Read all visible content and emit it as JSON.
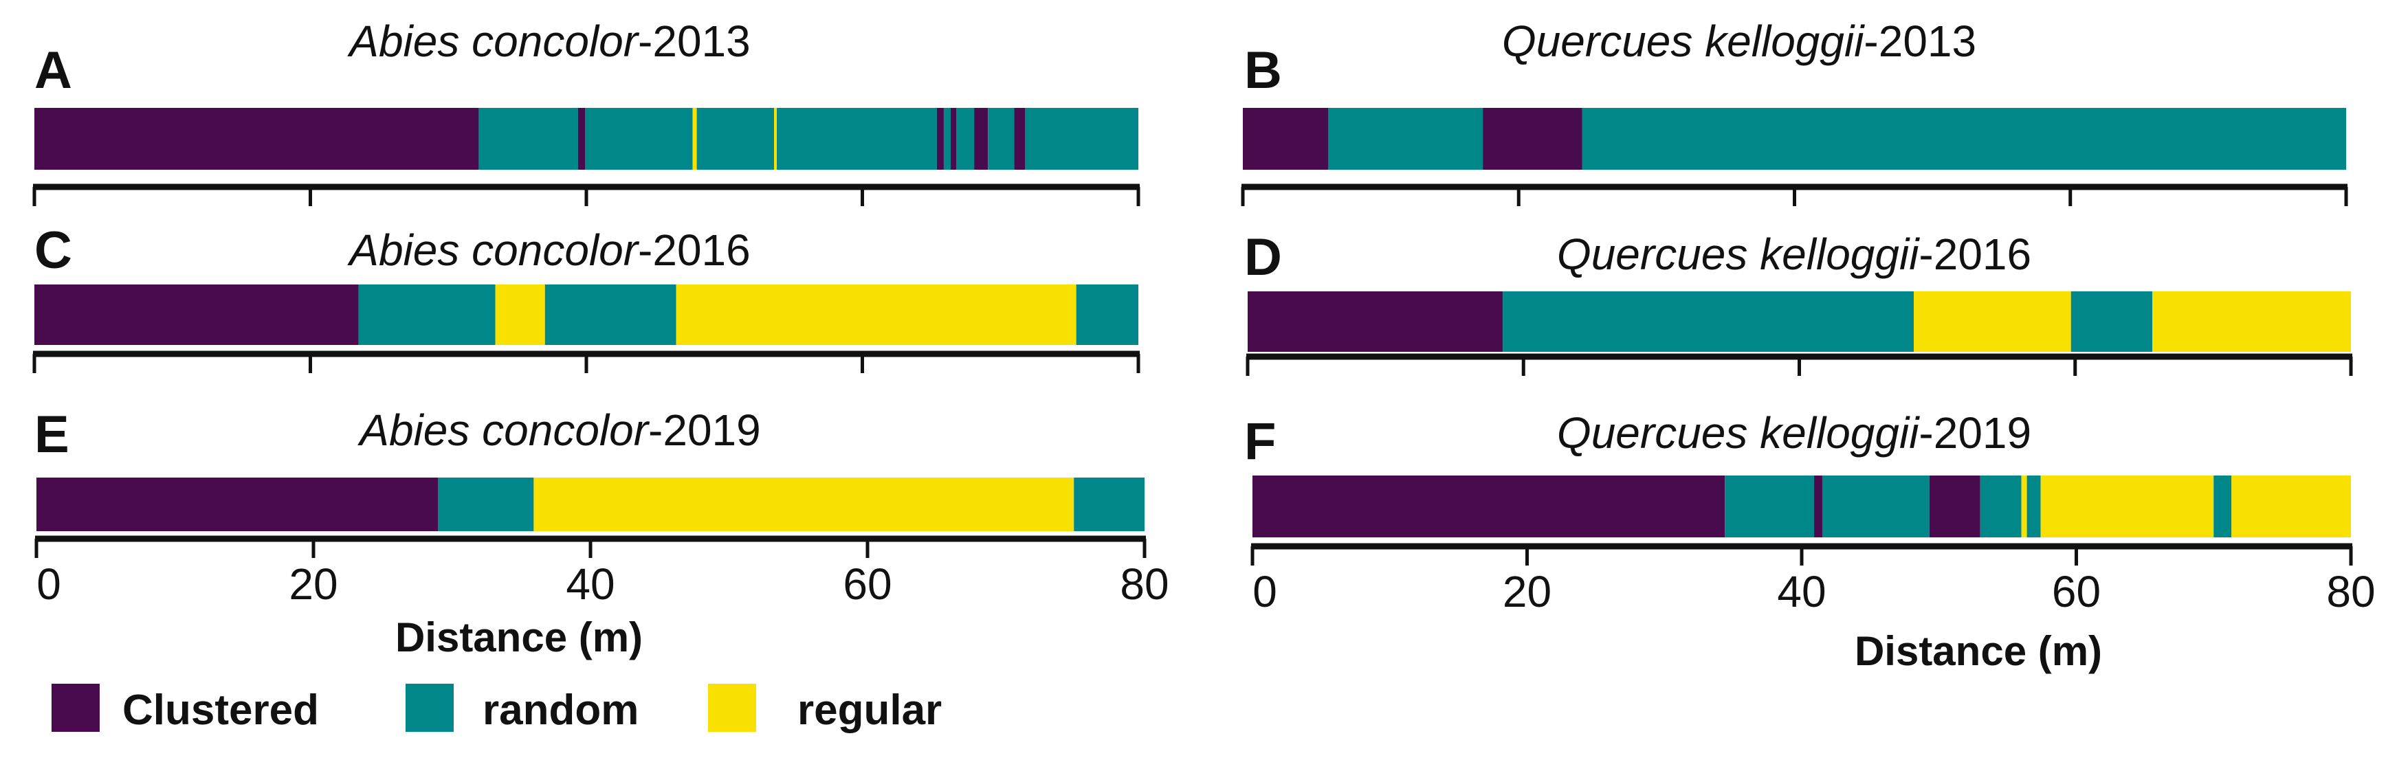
{
  "colors": {
    "clustered": "#4a0a4e",
    "random": "#00878a",
    "regular": "#f8e000",
    "axis": "#111111"
  },
  "legend": [
    {
      "key": "clustered",
      "label": "Clustered"
    },
    {
      "key": "random",
      "label": "random"
    },
    {
      "key": "regular",
      "label": "regular"
    }
  ],
  "chart_data": [
    {
      "type": "bar",
      "panel": "A",
      "species": "Abies concolor",
      "year": "-2013",
      "xlim": [
        0,
        80
      ],
      "xticks": [
        0,
        20,
        40,
        60,
        80
      ],
      "show_tick_labels": false,
      "xlabel": "",
      "segments": [
        {
          "start": 0,
          "end": 32.2,
          "class": "clustered"
        },
        {
          "start": 32.2,
          "end": 39.4,
          "class": "random"
        },
        {
          "start": 39.4,
          "end": 39.9,
          "class": "clustered"
        },
        {
          "start": 39.9,
          "end": 47.7,
          "class": "random"
        },
        {
          "start": 47.7,
          "end": 48.0,
          "class": "regular"
        },
        {
          "start": 48.0,
          "end": 53.6,
          "class": "random"
        },
        {
          "start": 53.6,
          "end": 53.8,
          "class": "regular"
        },
        {
          "start": 53.8,
          "end": 65.4,
          "class": "random"
        },
        {
          "start": 65.4,
          "end": 65.9,
          "class": "clustered"
        },
        {
          "start": 65.9,
          "end": 66.4,
          "class": "random"
        },
        {
          "start": 66.4,
          "end": 66.8,
          "class": "clustered"
        },
        {
          "start": 66.8,
          "end": 68.1,
          "class": "random"
        },
        {
          "start": 68.1,
          "end": 69.1,
          "class": "clustered"
        },
        {
          "start": 69.1,
          "end": 71.0,
          "class": "random"
        },
        {
          "start": 71.0,
          "end": 71.8,
          "class": "clustered"
        },
        {
          "start": 71.8,
          "end": 80,
          "class": "random"
        }
      ]
    },
    {
      "type": "bar",
      "panel": "B",
      "species": "Quercues kelloggii",
      "year": "-2013",
      "xlim": [
        0,
        80
      ],
      "xticks": [
        0,
        20,
        40,
        60,
        80
      ],
      "show_tick_labels": false,
      "xlabel": "",
      "segments": [
        {
          "start": 0,
          "end": 6.2,
          "class": "clustered"
        },
        {
          "start": 6.2,
          "end": 17.4,
          "class": "random"
        },
        {
          "start": 17.4,
          "end": 24.6,
          "class": "clustered"
        },
        {
          "start": 24.6,
          "end": 80,
          "class": "random"
        }
      ]
    },
    {
      "type": "bar",
      "panel": "C",
      "species": "Abies concolor",
      "year": "-2016",
      "xlim": [
        0,
        80
      ],
      "xticks": [
        0,
        20,
        40,
        60,
        80
      ],
      "show_tick_labels": false,
      "xlabel": "",
      "segments": [
        {
          "start": 0,
          "end": 23.5,
          "class": "clustered"
        },
        {
          "start": 23.5,
          "end": 33.4,
          "class": "random"
        },
        {
          "start": 33.4,
          "end": 37.0,
          "class": "regular"
        },
        {
          "start": 37.0,
          "end": 46.5,
          "class": "random"
        },
        {
          "start": 46.5,
          "end": 75.5,
          "class": "regular"
        },
        {
          "start": 75.5,
          "end": 80,
          "class": "random"
        }
      ]
    },
    {
      "type": "bar",
      "panel": "D",
      "species": "Quercues kelloggii",
      "year": "-2016",
      "xlim": [
        0,
        80
      ],
      "xticks": [
        0,
        20,
        40,
        60,
        80
      ],
      "show_tick_labels": false,
      "xlabel": "",
      "segments": [
        {
          "start": 0,
          "end": 18.5,
          "class": "clustered"
        },
        {
          "start": 18.5,
          "end": 48.3,
          "class": "random"
        },
        {
          "start": 48.3,
          "end": 59.7,
          "class": "regular"
        },
        {
          "start": 59.7,
          "end": 65.6,
          "class": "random"
        },
        {
          "start": 65.6,
          "end": 80,
          "class": "regular"
        }
      ]
    },
    {
      "type": "bar",
      "panel": "E",
      "species": "Abies concolor",
      "year": "-2019",
      "xlim": [
        0,
        80
      ],
      "xticks": [
        0,
        20,
        40,
        60,
        80
      ],
      "show_tick_labels": true,
      "xlabel": "Distance (m)",
      "tick_labels": [
        "0",
        "20",
        "40",
        "60",
        "80"
      ],
      "segments": [
        {
          "start": 0,
          "end": 29.0,
          "class": "clustered"
        },
        {
          "start": 29.0,
          "end": 35.9,
          "class": "random"
        },
        {
          "start": 35.9,
          "end": 74.9,
          "class": "regular"
        },
        {
          "start": 74.9,
          "end": 80,
          "class": "random"
        }
      ]
    },
    {
      "type": "bar",
      "panel": "F",
      "species": "Quercues kelloggii",
      "year": "-2019",
      "xlim": [
        0,
        80
      ],
      "xticks": [
        0,
        20,
        40,
        60,
        80
      ],
      "show_tick_labels": true,
      "xlabel": "Distance (m)",
      "tick_labels": [
        "0",
        "20",
        "40",
        "60",
        "80"
      ],
      "segments": [
        {
          "start": 0,
          "end": 34.4,
          "class": "clustered"
        },
        {
          "start": 34.4,
          "end": 40.9,
          "class": "random"
        },
        {
          "start": 40.9,
          "end": 41.5,
          "class": "clustered"
        },
        {
          "start": 41.5,
          "end": 49.3,
          "class": "random"
        },
        {
          "start": 49.3,
          "end": 53.0,
          "class": "clustered"
        },
        {
          "start": 53.0,
          "end": 56.0,
          "class": "random"
        },
        {
          "start": 56.0,
          "end": 56.4,
          "class": "regular"
        },
        {
          "start": 56.4,
          "end": 57.4,
          "class": "random"
        },
        {
          "start": 57.4,
          "end": 70.0,
          "class": "regular"
        },
        {
          "start": 70.0,
          "end": 71.3,
          "class": "random"
        },
        {
          "start": 71.3,
          "end": 80,
          "class": "regular"
        }
      ]
    }
  ]
}
